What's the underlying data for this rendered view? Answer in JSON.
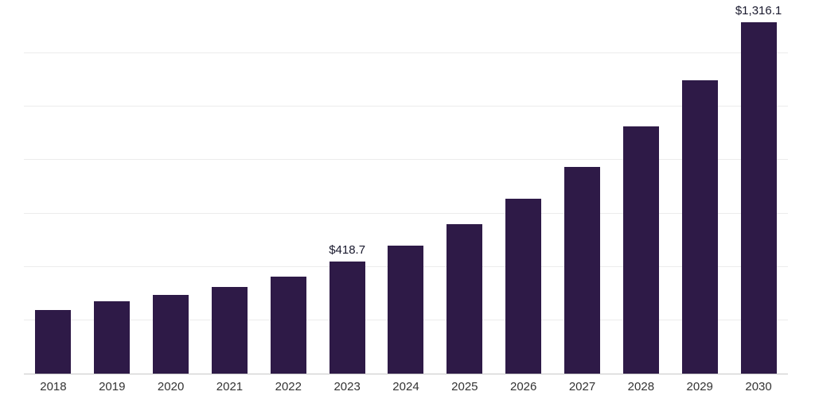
{
  "chart_data": {
    "type": "bar",
    "title": "",
    "xlabel": "",
    "ylabel": "",
    "categories": [
      "2018",
      "2019",
      "2020",
      "2021",
      "2022",
      "2023",
      "2024",
      "2025",
      "2026",
      "2027",
      "2028",
      "2029",
      "2030"
    ],
    "values": [
      237,
      270,
      295,
      325,
      362,
      418.7,
      481,
      560,
      655,
      775,
      925,
      1100,
      1316.1
    ],
    "data_labels": [
      null,
      null,
      null,
      null,
      null,
      "$418.7",
      null,
      null,
      null,
      null,
      null,
      null,
      "$1,316.1"
    ],
    "ylim": [
      0,
      1400
    ],
    "grid_interval": 200,
    "grid": "horizontal",
    "legend": "none",
    "bar_color": "#2e1a47",
    "grid_color": "#ececec",
    "axis_color": "#c8c8c8",
    "label_color": "#1a1a2e",
    "tick_color": "#333333"
  }
}
